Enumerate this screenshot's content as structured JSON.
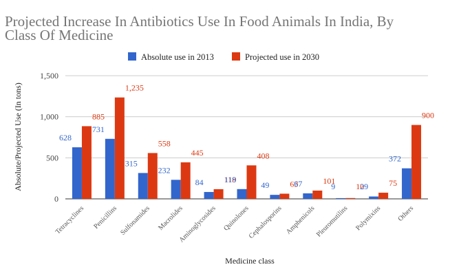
{
  "chart_data": {
    "type": "bar",
    "title_lines": [
      "Projected Increase In Antibiotics Use In Food Animals In India, By",
      "Class Of Medicine"
    ],
    "xlabel": "Medicine class",
    "ylabel": "Absolute/Projected Use (In tons)",
    "ylim": [
      0,
      1500
    ],
    "yticks": [
      0,
      500,
      1000,
      1500
    ],
    "ytick_labels": [
      "0",
      "500",
      "1,000",
      "1,500"
    ],
    "grid": true,
    "legend_position": "top-center",
    "categories": [
      "Tetracyclines",
      "Penicillins",
      "Sulfonamides",
      "Macrolides",
      "Aminoglycosides",
      "Quinolones",
      "Cephalosporins",
      "Amphenicols",
      "Pleuromutilins",
      "Polymixins",
      "Others"
    ],
    "series": [
      {
        "name": "Absolute use in 2013",
        "color": "#3366cc",
        "values": [
          628,
          731,
          315,
          232,
          84,
          119,
          49,
          67,
          9,
          29,
          372
        ],
        "labels": [
          "628",
          "731",
          "315",
          "232",
          "84",
          "119",
          "49",
          "67",
          "9",
          "29",
          "372"
        ]
      },
      {
        "name": "Projected use in 2030",
        "color": "#dc3912",
        "values": [
          885,
          1235,
          558,
          445,
          118,
          408,
          63,
          101,
          10,
          75,
          900
        ],
        "labels": [
          "885",
          "1,235",
          "558",
          "445",
          "118",
          "408",
          "63",
          "101",
          "10",
          "75",
          "900"
        ]
      }
    ]
  }
}
